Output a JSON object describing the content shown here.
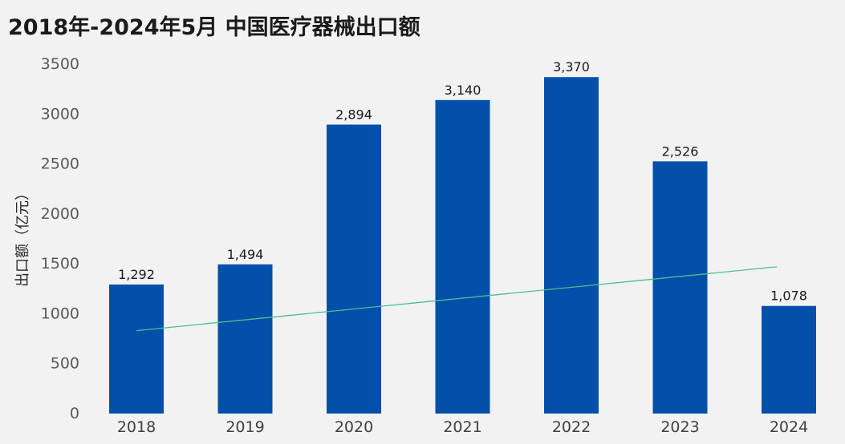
{
  "chart_data": {
    "type": "bar",
    "title": "2018年-2024年5月 中国医疗器械出口额",
    "ylabel": "出口额（亿元）",
    "xlabel": "",
    "categories": [
      "2018",
      "2019",
      "2020",
      "2021",
      "2022",
      "2023",
      "2024"
    ],
    "values": [
      1292,
      1494,
      2894,
      3140,
      3370,
      2526,
      1078
    ],
    "data_labels": [
      "1,292",
      "1,494",
      "2,894",
      "3,140",
      "3,370",
      "2,526",
      "1,078"
    ],
    "ylim": [
      0,
      3500
    ],
    "yticks": [
      0,
      500,
      1000,
      1500,
      2000,
      2500,
      3000,
      3500
    ],
    "trendline": {
      "type": "linear",
      "from": 830,
      "to": 1470
    },
    "grid": false,
    "legend": "none",
    "colors": {
      "bar": "#0350aa",
      "trend": "#4dbf8e",
      "background": "#f2f2f2"
    }
  }
}
